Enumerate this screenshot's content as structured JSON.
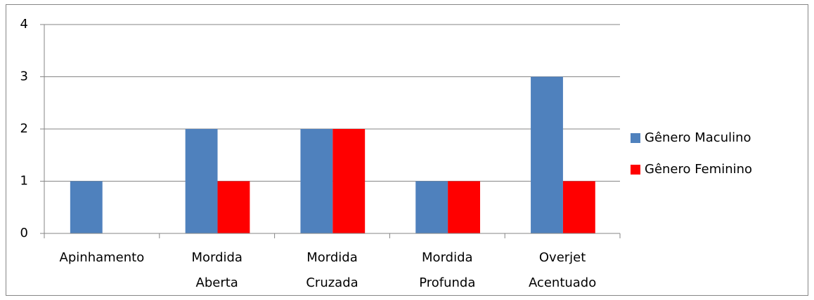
{
  "chart_data": {
    "type": "bar",
    "categories": [
      "Apinhamento",
      "Mordida Aberta",
      "Mordida Cruzada",
      "Mordida Profunda",
      "Overjet Acentuado"
    ],
    "series": [
      {
        "name": "Gênero Maculino",
        "color": "#4f81bd",
        "values": [
          1,
          2,
          2,
          1,
          3
        ]
      },
      {
        "name": "Gênero Feminino",
        "color": "#ff0000",
        "values": [
          0,
          1,
          2,
          1,
          1
        ]
      }
    ],
    "ylim": [
      0,
      4
    ],
    "yticks": [
      0,
      1,
      2,
      3,
      4
    ],
    "grid": true,
    "legend": "right"
  }
}
